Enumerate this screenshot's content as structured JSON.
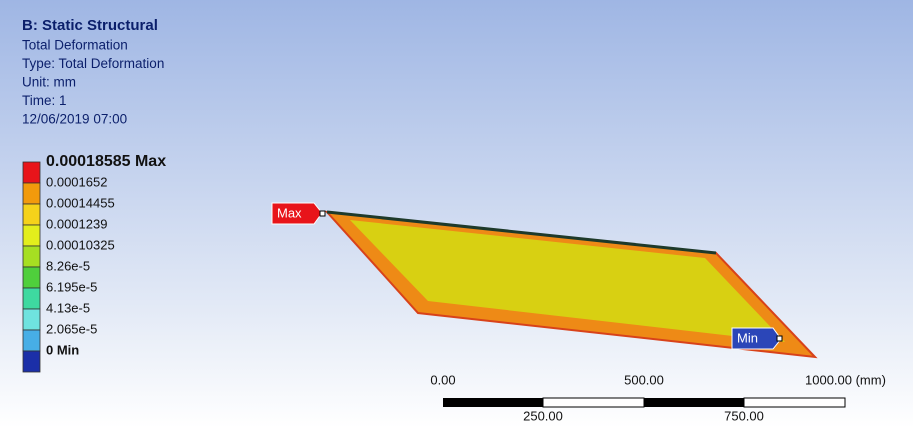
{
  "header": {
    "title": "B: Static Structural",
    "lines": [
      "Total Deformation",
      "Type: Total Deformation",
      "Unit: mm",
      "Time: 1",
      "12/06/2019 07:00"
    ]
  },
  "legend": {
    "labels": [
      "0.00018585 Max",
      "0.0001652",
      "0.00014455",
      "0.0001239",
      "0.00010325",
      "8.26e-5",
      "6.195e-5",
      "4.13e-5",
      "2.065e-5",
      "0 Min"
    ],
    "colors": [
      "#e8141a",
      "#f29a0c",
      "#f5d21a",
      "#e3ee1c",
      "#a6df22",
      "#4fcf3c",
      "#3ed9a0",
      "#6fe3df",
      "#47aee6",
      "#1b2fa8"
    ]
  },
  "probes": {
    "max": "Max",
    "min": "Min"
  },
  "scale": {
    "top": [
      "0.00",
      "500.00",
      "1000.00 (mm)"
    ],
    "bottom": [
      "250.00",
      "750.00"
    ]
  }
}
